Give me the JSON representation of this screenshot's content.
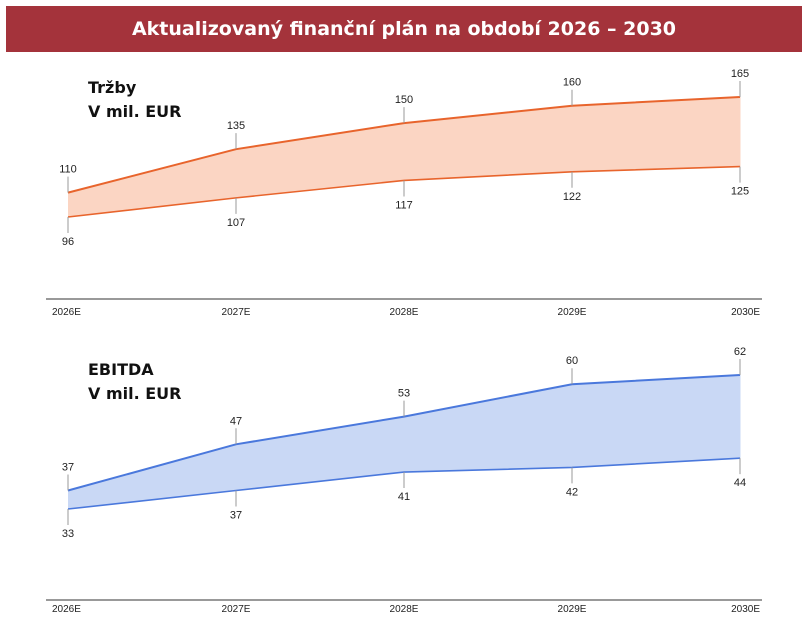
{
  "header": {
    "title": "Aktualizovaný finanční plán na období 2026 – 2030"
  },
  "chart_data": [
    {
      "type": "area",
      "title_lines": [
        "Tržby",
        "V mil. EUR"
      ],
      "categories": [
        "2026E",
        "2027E",
        "2028E",
        "2029E",
        "2030E"
      ],
      "series": [
        {
          "values": [
            110,
            135,
            150,
            160,
            165
          ]
        },
        {
          "values": [
            96,
            107,
            117,
            122,
            125
          ]
        }
      ],
      "ylim": [
        50,
        175
      ],
      "colors": {
        "line": "#e8642c",
        "fill": "#fbd5c3"
      }
    },
    {
      "type": "area",
      "title_lines": [
        "EBITDA",
        "V mil. EUR"
      ],
      "categories": [
        "2026E",
        "2027E",
        "2028E",
        "2029E",
        "2030E"
      ],
      "series": [
        {
          "values": [
            37,
            47,
            53,
            60,
            62
          ]
        },
        {
          "values": [
            33,
            37,
            41,
            42,
            44
          ]
        }
      ],
      "ylim": [
        10,
        70
      ],
      "colors": {
        "line": "#4a78dc",
        "fill": "#c9d8f5"
      }
    }
  ]
}
